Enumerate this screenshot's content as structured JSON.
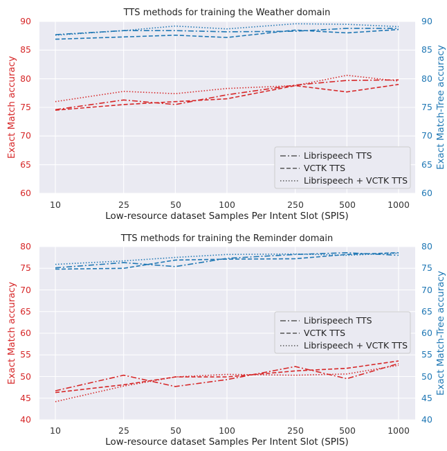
{
  "colors": {
    "left_axis": "#d62728",
    "right_axis": "#1f77b4",
    "plot_bg": "#eaeaf2",
    "grid": "#ffffff"
  },
  "chart_data": [
    {
      "type": "line",
      "title": "TTS methods for training the Weather domain",
      "xlabel": "Low-resource dataset Samples Per Intent Slot (SPIS)",
      "ylabel": "Exact Match accuracy",
      "ylabel_right": "Exact Match-Tree accuracy",
      "x_scale": "log",
      "x": [
        10,
        25,
        50,
        100,
        250,
        500,
        1000
      ],
      "x_tick_labels": [
        "10",
        "25",
        "50",
        "100",
        "250",
        "500",
        "1000"
      ],
      "ylim": [
        60,
        90
      ],
      "y_ticks": [
        60,
        65,
        70,
        75,
        80,
        85,
        90
      ],
      "ylim_right": [
        60,
        90
      ],
      "y_ticks_right": [
        60,
        65,
        70,
        75,
        80,
        85,
        90
      ],
      "grid": true,
      "legend_position": "lower-right",
      "legend": [
        "Librispeech TTS",
        "VCTK TTS",
        "Librispeech + VCTK TTS"
      ],
      "series": [
        {
          "name": "Librispeech TTS",
          "axis": "left",
          "values": [
            74.6,
            76.3,
            75.5,
            77.2,
            78.9,
            79.7,
            79.8
          ]
        },
        {
          "name": "VCTK TTS",
          "axis": "left",
          "values": [
            74.5,
            75.5,
            76.0,
            76.5,
            78.8,
            77.7,
            79.0
          ]
        },
        {
          "name": "Librispeech + VCTK TTS",
          "axis": "left",
          "values": [
            76.0,
            77.8,
            77.4,
            78.3,
            78.8,
            80.6,
            79.6
          ]
        },
        {
          "name": "Librispeech TTS",
          "axis": "right",
          "values": [
            87.7,
            88.4,
            88.4,
            88.2,
            88.3,
            88.8,
            88.8
          ]
        },
        {
          "name": "VCTK TTS",
          "axis": "right",
          "values": [
            86.9,
            87.3,
            87.6,
            87.2,
            88.5,
            88.0,
            88.6
          ]
        },
        {
          "name": "Librispeech + VCTK TTS",
          "axis": "right",
          "values": [
            87.6,
            88.4,
            89.2,
            88.7,
            89.6,
            89.5,
            89.1
          ]
        }
      ]
    },
    {
      "type": "line",
      "title": "TTS methods for training the Reminder domain",
      "xlabel": "Low-resource dataset Samples Per Intent Slot (SPIS)",
      "ylabel": "Exact Match accuracy",
      "ylabel_right": "Exact Match-Tree accuracy",
      "x_scale": "log",
      "x": [
        10,
        25,
        50,
        100,
        250,
        500,
        1000
      ],
      "x_tick_labels": [
        "10",
        "25",
        "50",
        "100",
        "250",
        "500",
        "1000"
      ],
      "ylim": [
        40,
        80
      ],
      "y_ticks": [
        40,
        45,
        50,
        55,
        60,
        65,
        70,
        75,
        80
      ],
      "ylim_right": [
        40,
        80
      ],
      "y_ticks_right": [
        40,
        45,
        50,
        55,
        60,
        65,
        70,
        75,
        80
      ],
      "grid": true,
      "legend_position": "right",
      "legend": [
        "Librispeech TTS",
        "VCTK TTS",
        "Librispeech + VCTK TTS"
      ],
      "series": [
        {
          "name": "Librispeech TTS",
          "axis": "left",
          "values": [
            46.7,
            50.3,
            47.7,
            49.3,
            52.3,
            49.5,
            53.0
          ]
        },
        {
          "name": "VCTK TTS",
          "axis": "left",
          "values": [
            46.3,
            48.1,
            49.9,
            49.9,
            51.3,
            51.9,
            53.6
          ]
        },
        {
          "name": "Librispeech + VCTK TTS",
          "axis": "left",
          "values": [
            44.2,
            47.8,
            49.9,
            50.5,
            50.3,
            50.6,
            52.6
          ]
        },
        {
          "name": "Librispeech TTS",
          "axis": "right",
          "values": [
            75.1,
            76.3,
            75.4,
            77.3,
            78.2,
            78.6,
            78.0
          ]
        },
        {
          "name": "VCTK TTS",
          "axis": "right",
          "values": [
            74.8,
            75.0,
            76.9,
            77.1,
            77.2,
            78.2,
            78.6
          ]
        },
        {
          "name": "Librispeech + VCTK TTS",
          "axis": "right",
          "values": [
            75.9,
            76.7,
            77.5,
            78.2,
            78.3,
            78.0,
            78.5
          ]
        }
      ]
    }
  ]
}
